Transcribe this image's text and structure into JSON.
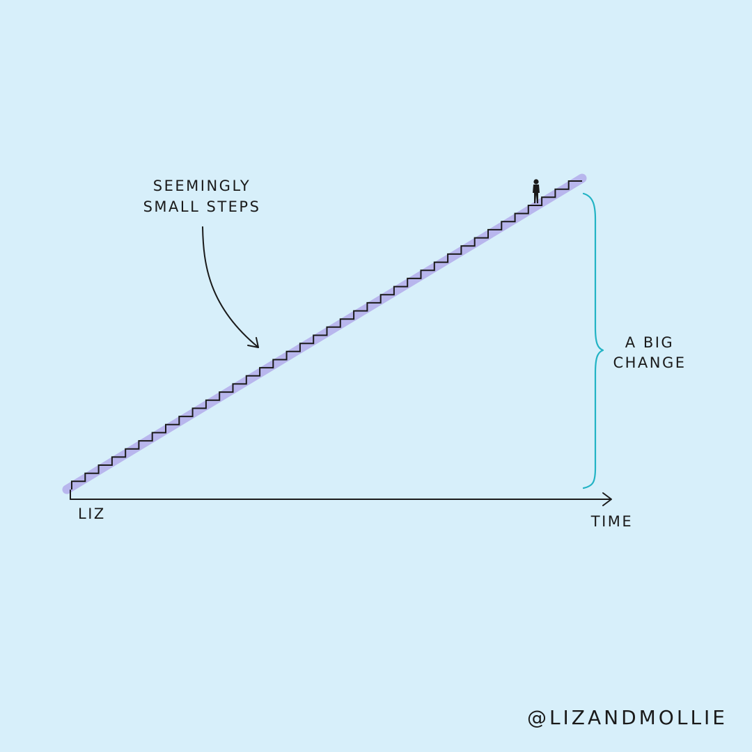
{
  "diagram": {
    "step_count": 38,
    "annotations": {
      "steps_label_line1": "SEEMINGLY",
      "steps_label_line2": "SMALL STEPS",
      "change_label_line1": "A BIG",
      "change_label_line2": "CHANGE"
    },
    "axis": {
      "start_label": "LIZ",
      "end_label": "TIME"
    },
    "colors": {
      "background": "#d7effa",
      "ink": "#1a1a1a",
      "stair_shadow": "#b5b0ec",
      "brace": "#22b3c4"
    }
  },
  "credit": "@LIZANDMOLLIE"
}
